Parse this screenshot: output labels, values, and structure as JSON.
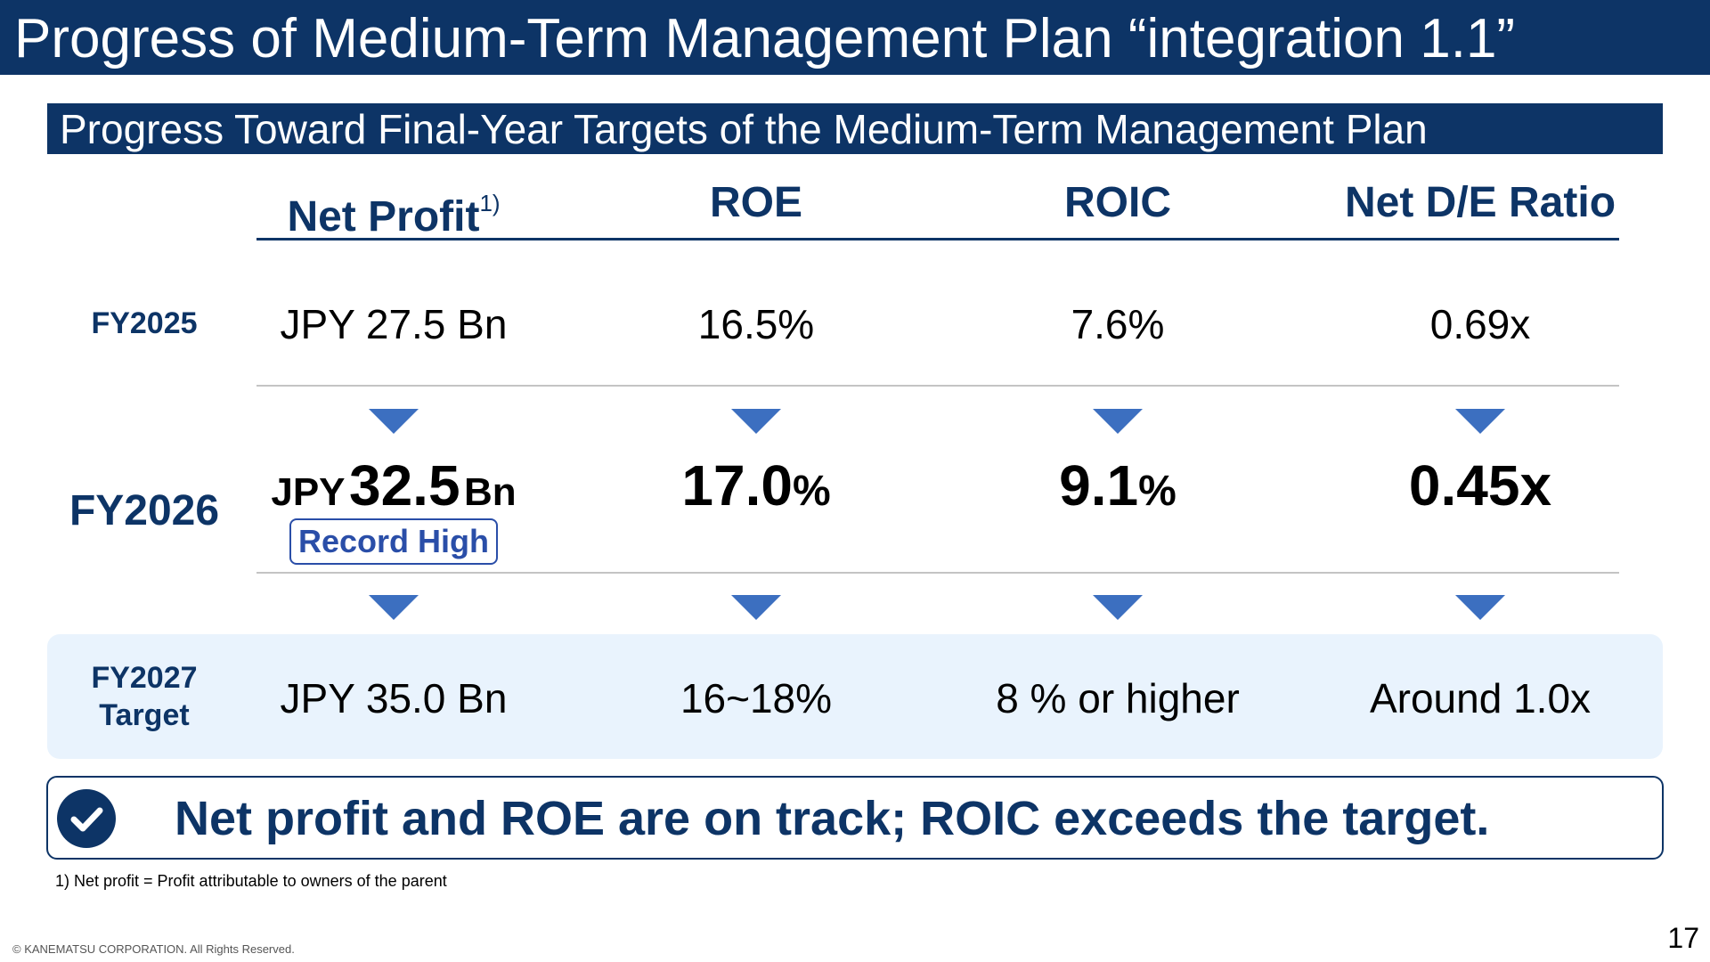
{
  "header": {
    "title": "Progress of Medium-Term Management Plan “integration 1.1”"
  },
  "section": {
    "title": "Progress Toward Final-Year Targets of the Medium-Term Management Plan"
  },
  "columns": [
    {
      "label": "Net Profit",
      "footnote_marker": "1)"
    },
    {
      "label": "ROE"
    },
    {
      "label": "ROIC"
    },
    {
      "label": "Net D/E Ratio"
    }
  ],
  "rows": {
    "fy2025": {
      "label": "FY2025",
      "values": [
        "JPY 27.5 Bn",
        "16.5%",
        "7.6%",
        "0.69x"
      ]
    },
    "fy2026": {
      "label": "FY2026",
      "net_profit": {
        "prefix": "JPY",
        "value": "32.5",
        "suffix": "Bn"
      },
      "roe": {
        "value": "17.0",
        "unit": "%"
      },
      "roic": {
        "value": "9.1",
        "unit": "%"
      },
      "de_ratio": {
        "value": "0.45x"
      },
      "badge": "Record High"
    },
    "fy2027": {
      "label_line1": "FY2027",
      "label_line2": "Target",
      "values": [
        "JPY 35.0 Bn",
        "16~18%",
        "8 % or higher",
        "Around 1.0x"
      ]
    }
  },
  "summary": {
    "icon": "check-circle-icon",
    "text": "Net profit and ROE are on track; ROIC exceeds the target."
  },
  "footnote": "1) Net profit = Profit attributable to owners of the parent",
  "copyright": "© KANEMATSU CORPORATION. All Rights Reserved.",
  "page_number": "17",
  "colors": {
    "navy": "#0d3466",
    "arrow_blue": "#3c6fc0",
    "badge_blue": "#2a4ea8",
    "target_band": "#e9f3fd",
    "divider_gray": "#c4c4c4"
  }
}
